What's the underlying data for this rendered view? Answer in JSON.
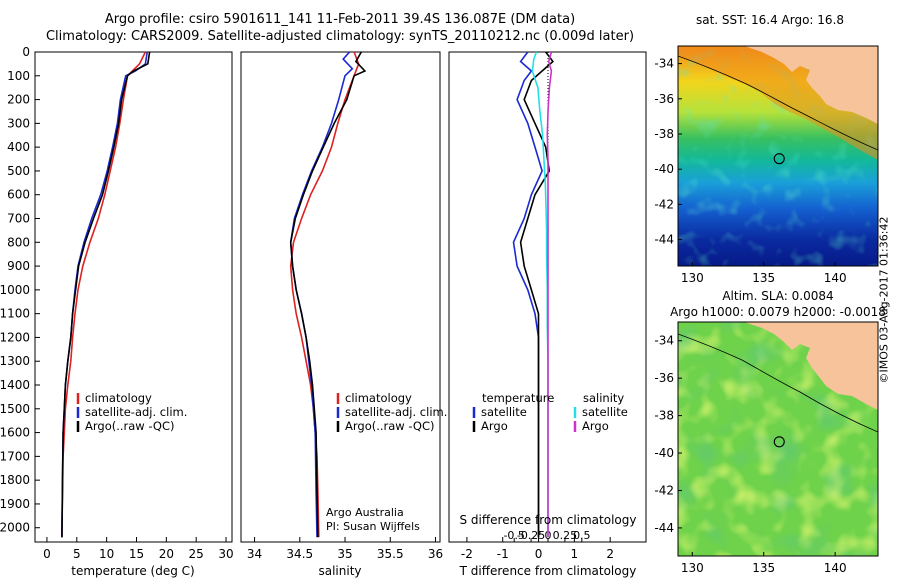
{
  "titles": {
    "line1": "Argo profile: csiro 5901611_141 11-Feb-2011 39.4S 136.087E (DM data)",
    "line2": "Climatology: CARS2009. Satellite-adjusted climatology: synTS_20110212.nc (0.009d later)"
  },
  "stamp": "©IMOS 03-Aug-2017 01:36:42",
  "colors": {
    "climatology": "#dd2222",
    "satellite": "#1a2ad0",
    "argo": "#000000",
    "salinity_satellite": "#22e0e8",
    "salinity_argo": "#cc33cc",
    "land": "#f6c39a"
  },
  "chart_data": [
    {
      "type": "line",
      "panel": "temperature",
      "xlabel": "temperature (deg C)",
      "ylabel": "",
      "xlim": [
        -2,
        31
      ],
      "ylim": [
        2060,
        0
      ],
      "xticks": [
        0,
        5,
        10,
        15,
        20,
        25,
        30
      ],
      "yticks": [
        0,
        100,
        200,
        300,
        400,
        500,
        600,
        700,
        800,
        900,
        1000,
        1100,
        1200,
        1300,
        1400,
        1500,
        1600,
        1700,
        1800,
        1900,
        2000
      ],
      "legend": [
        "climatology",
        "satellite-adj. clim.",
        "Argo(..raw -QC)"
      ],
      "series": [
        {
          "name": "climatology",
          "x": [
            16.5,
            15.5,
            13.5,
            12.8,
            12.2,
            11.5,
            10.6,
            9.7,
            8.6,
            7.2,
            6.0,
            5.2,
            4.7,
            4.3,
            4.0,
            3.5,
            3.1,
            2.9,
            2.7,
            2.6,
            2.5
          ],
          "y": [
            0,
            50,
            100,
            200,
            300,
            400,
            500,
            600,
            700,
            800,
            900,
            1000,
            1100,
            1200,
            1300,
            1400,
            1500,
            1600,
            1700,
            1850,
            2040
          ]
        },
        {
          "name": "satellite-adj. clim.",
          "x": [
            16.8,
            16.5,
            14.8,
            13.2,
            12.3,
            11.8,
            11.0,
            10.1,
            9.0,
            7.5,
            6.2,
            5.2,
            4.7,
            4.3,
            4.0,
            3.5,
            3.1,
            2.9,
            2.7,
            2.6,
            2.5
          ],
          "y": [
            0,
            50,
            80,
            100,
            200,
            300,
            400,
            500,
            600,
            700,
            800,
            900,
            1000,
            1100,
            1200,
            1300,
            1400,
            1500,
            1600,
            1800,
            2040
          ]
        },
        {
          "name": "Argo(..raw -QC)",
          "x": [
            17.2,
            16.9,
            14.5,
            13.5,
            12.5,
            12.0,
            11.2,
            10.3,
            9.3,
            7.8,
            6.4,
            5.3,
            4.8,
            4.3,
            4.0,
            3.5,
            3.1,
            2.9,
            2.7,
            2.6,
            2.5
          ],
          "y": [
            0,
            50,
            80,
            100,
            200,
            300,
            400,
            500,
            600,
            700,
            800,
            900,
            1000,
            1100,
            1200,
            1300,
            1400,
            1500,
            1600,
            1800,
            2040
          ]
        }
      ]
    },
    {
      "type": "line",
      "panel": "salinity",
      "xlabel": "salinity",
      "ylabel": "",
      "xlim": [
        33.85,
        36.05
      ],
      "ylim": [
        2060,
        0
      ],
      "xticks": [
        34,
        34.5,
        35,
        35.5,
        36
      ],
      "xticklabels": [
        "34",
        "34.5",
        "35",
        "35.5",
        "36"
      ],
      "legend": [
        "climatology",
        "satellite-adj. clim.",
        "Argo(..raw -QC)"
      ],
      "annotation": [
        "Argo Australia",
        "PI: Susan Wijffels"
      ],
      "series": [
        {
          "name": "climatology",
          "x": [
            35.1,
            35.15,
            35.1,
            35.0,
            34.92,
            34.85,
            34.75,
            34.62,
            34.52,
            34.43,
            34.4,
            34.42,
            34.46,
            34.52,
            34.57,
            34.62,
            34.65,
            34.67,
            34.69,
            34.7,
            34.71
          ],
          "y": [
            0,
            50,
            100,
            200,
            300,
            400,
            500,
            600,
            700,
            800,
            900,
            1000,
            1100,
            1200,
            1300,
            1400,
            1500,
            1600,
            1700,
            1850,
            2040
          ]
        },
        {
          "name": "satellite-adj. clim.",
          "x": [
            35.05,
            34.98,
            35.08,
            35.0,
            34.93,
            34.85,
            34.75,
            34.63,
            34.53,
            34.44,
            34.4,
            34.42,
            34.46,
            34.52,
            34.57,
            34.6,
            34.63,
            34.65,
            34.67,
            34.68,
            34.69
          ],
          "y": [
            0,
            30,
            70,
            100,
            200,
            300,
            400,
            500,
            600,
            700,
            800,
            900,
            1000,
            1100,
            1200,
            1300,
            1400,
            1500,
            1600,
            1850,
            2040
          ]
        },
        {
          "name": "Argo(..raw -QC)",
          "x": [
            35.18,
            35.12,
            35.22,
            35.1,
            35.02,
            34.88,
            34.76,
            34.64,
            34.54,
            34.45,
            34.4,
            34.42,
            34.46,
            34.52,
            34.57,
            34.61,
            34.64,
            34.66,
            34.68,
            34.69,
            34.7
          ],
          "y": [
            0,
            40,
            80,
            100,
            200,
            300,
            400,
            500,
            600,
            700,
            800,
            900,
            1000,
            1100,
            1200,
            1300,
            1400,
            1500,
            1600,
            1850,
            2040
          ]
        }
      ]
    },
    {
      "type": "line",
      "panel": "difference",
      "xlabel": "T difference from climatology",
      "title_bottom": "S difference from climatology",
      "xlim": [
        -2.5,
        3
      ],
      "ylim": [
        2060,
        0
      ],
      "xticks": [
        -2,
        -1,
        0,
        1,
        2
      ],
      "top_axis_ticks": [
        -0.5,
        -0.25,
        0,
        0.25,
        0.5
      ],
      "top_axis_labels": [
        "-0.5",
        "-0.25",
        "0",
        "0.25",
        "0.5"
      ],
      "legend_temperature": {
        "heading": "temperature",
        "items": [
          "satellite",
          "Argo"
        ]
      },
      "legend_salinity": {
        "heading": "salinity",
        "items": [
          "satellite",
          "Argo"
        ]
      },
      "series": [
        {
          "name": "temperature satellite",
          "x": [
            -0.3,
            -0.5,
            -0.2,
            -0.4,
            -0.6,
            -0.3,
            -0.1,
            0.1,
            -0.2,
            -0.4,
            -0.7,
            -0.6,
            -0.3,
            -0.1,
            0.0,
            0.0,
            0.0,
            0.0,
            0.0,
            0.0
          ],
          "y": [
            0,
            40,
            80,
            120,
            200,
            300,
            400,
            500,
            600,
            700,
            800,
            900,
            1000,
            1100,
            1200,
            1400,
            1600,
            1800,
            1950,
            2040
          ]
        },
        {
          "name": "temperature Argo",
          "x": [
            0.2,
            0.4,
            0.1,
            -0.2,
            -0.4,
            -0.1,
            0.2,
            0.3,
            -0.1,
            -0.3,
            -0.5,
            -0.4,
            -0.2,
            0.0,
            0.0,
            0.0,
            0.0,
            0.0,
            0.0,
            0.0
          ],
          "y": [
            0,
            40,
            80,
            120,
            200,
            300,
            400,
            500,
            600,
            700,
            800,
            900,
            1000,
            1100,
            1200,
            1400,
            1600,
            1800,
            1950,
            2040
          ]
        },
        {
          "name": "salinity satellite",
          "x": [
            -0.17,
            -0.21,
            -0.23,
            -0.15,
            -0.12,
            -0.08,
            -0.06,
            -0.04,
            -0.03,
            -0.02,
            -0.02,
            -0.01,
            -0.01,
            0.0,
            0.0,
            0.0,
            0.0,
            0.0
          ],
          "y": [
            0,
            30,
            80,
            150,
            250,
            350,
            450,
            550,
            650,
            750,
            850,
            1000,
            1150,
            1300,
            1500,
            1700,
            1900,
            2040
          ]
        },
        {
          "name": "salinity Argo",
          "x": [
            0.05,
            0.01,
            0.05,
            0.02,
            0.0,
            -0.01,
            0.0,
            0.0,
            0.0,
            0.0,
            0.0,
            0.0,
            0.0,
            0.0,
            0.0,
            0.0,
            0.0
          ],
          "y": [
            0,
            40,
            80,
            150,
            250,
            350,
            450,
            550,
            650,
            750,
            850,
            1000,
            1200,
            1400,
            1600,
            1800,
            2040
          ]
        }
      ]
    },
    {
      "type": "heatmap",
      "panel": "sst-map",
      "title": "sat. SST: 16.4  Argo: 16.8",
      "xlim": [
        129,
        143
      ],
      "ylim": [
        -45.5,
        -33
      ],
      "xticks": [
        130,
        135,
        140
      ],
      "yticks": [
        -34,
        -36,
        -38,
        -40,
        -42,
        -44
      ],
      "marker": {
        "lon": 136.087,
        "lat": -39.4
      }
    },
    {
      "type": "heatmap",
      "panel": "sla-map",
      "title_lines": [
        "Altim. SLA: 0.0084",
        "Argo h1000: 0.0079  h2000: -0.0018"
      ],
      "xlim": [
        129,
        143
      ],
      "ylim": [
        -45.5,
        -33
      ],
      "xticks": [
        130,
        135,
        140
      ],
      "yticks": [
        -34,
        -36,
        -38,
        -40,
        -42,
        -44
      ],
      "marker": {
        "lon": 136.087,
        "lat": -39.4
      }
    }
  ]
}
